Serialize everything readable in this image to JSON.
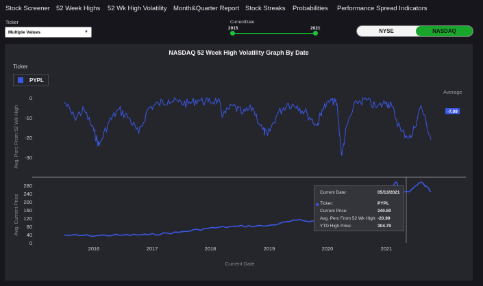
{
  "nav": [
    {
      "label": "Stock Screener"
    },
    {
      "label": "52 Week Highs"
    },
    {
      "label": "52 Wk High Volatility"
    },
    {
      "label": "Month&Quarter Report"
    },
    {
      "label": "Stock Streaks"
    },
    {
      "label": "Probabilities"
    },
    {
      "label": "Performance Spread Indicators"
    }
  ],
  "ticker_filter": {
    "label": "Ticker",
    "value": "Multiple Values"
  },
  "date_filter": {
    "label": "CurrentDate",
    "min": "2015",
    "max": "2021"
  },
  "exchange": {
    "options": [
      "NYSE",
      "NASDAQ"
    ],
    "selected": "NASDAQ"
  },
  "chart": {
    "title": "NASDAQ 52 Week High Volatility Graph By Date",
    "legend_title": "Ticker",
    "legend_item": "PYPL",
    "series_color": "#3b59e6",
    "avg_label": "Average",
    "avg_value": "-7.09",
    "top_ylabel": "Avg. Perc From 52 Wk High",
    "bottom_ylabel": "Avg. Current Price",
    "xlabel": "Current Date",
    "top_ticks": [
      "0",
      "-10",
      "-20",
      "-30"
    ],
    "bottom_ticks": [
      "280",
      "240",
      "200",
      "160",
      "120",
      "80",
      "40",
      "0"
    ],
    "x_ticks": [
      "2016",
      "2017",
      "2018",
      "2019",
      "2020",
      "2021"
    ]
  },
  "chart_data": {
    "type": "line",
    "panels": [
      {
        "ylabel": "Avg. Perc From 52 Wk High",
        "ylim": [
          -33,
          0
        ],
        "reference_line": {
          "label": "Average",
          "value": -7.09
        },
        "series": [
          {
            "name": "PYPL",
            "color": "#3b59e6",
            "x": [
              "2015-07",
              "2015-09",
              "2015-11",
              "2016-01",
              "2016-02",
              "2016-04",
              "2016-06",
              "2016-08",
              "2016-10",
              "2016-12",
              "2017-02",
              "2017-04",
              "2017-06",
              "2017-08",
              "2017-10",
              "2017-12",
              "2018-02",
              "2018-03",
              "2018-05",
              "2018-07",
              "2018-09",
              "2018-11",
              "2018-12",
              "2019-02",
              "2019-04",
              "2019-06",
              "2019-08",
              "2019-10",
              "2019-11",
              "2020-01",
              "2020-02",
              "2020-03",
              "2020-04",
              "2020-06",
              "2020-08",
              "2020-10",
              "2020-12",
              "2021-01",
              "2021-03",
              "2021-05",
              "2021-07",
              "2021-09"
            ],
            "values": [
              -2,
              -10,
              -6,
              -17,
              -24,
              -12,
              -6,
              -10,
              -18,
              -5,
              -3,
              -1,
              -2,
              -3,
              -1,
              -2,
              -1,
              -9,
              -4,
              -8,
              -5,
              -16,
              -19,
              -8,
              -3,
              -4,
              -8,
              -14,
              -6,
              -1,
              -3,
              -29,
              -14,
              -2,
              -1,
              -5,
              -2,
              -4,
              -17,
              -20,
              -4,
              -21
            ]
          }
        ]
      },
      {
        "ylabel": "Avg. Current Price",
        "ylim": [
          0,
          300
        ],
        "series": [
          {
            "name": "PYPL",
            "color": "#3b59e6",
            "x": [
              "2015-07",
              "2015-12",
              "2016-06",
              "2016-12",
              "2017-06",
              "2017-12",
              "2018-06",
              "2018-12",
              "2019-06",
              "2019-10",
              "2020-01",
              "2020-03",
              "2020-06",
              "2020-09",
              "2020-12",
              "2021-02",
              "2021-03",
              "2021-05",
              "2021-07",
              "2021-09"
            ],
            "values": [
              38,
              36,
              38,
              40,
              52,
              72,
              82,
              84,
              112,
              105,
              116,
              90,
              160,
              195,
              240,
              300,
              240,
              260,
              300,
              252
            ]
          }
        ]
      }
    ],
    "x_ticks": [
      "2016",
      "2017",
      "2018",
      "2019",
      "2020",
      "2021"
    ],
    "xlabel": "Current Date",
    "tooltip": {
      "current_date": "05/13/2021",
      "ticker": "PYPL",
      "current_price": 240.8,
      "avg_perc_from_52wk_high": -20.99,
      "ytd_high_price": 304.79
    }
  },
  "tooltip": {
    "date_label": "Current Date:",
    "date_value": "05/13/2021",
    "ticker_label": "Ticker:",
    "ticker_value": "PYPL",
    "price_label": "Current Price:",
    "price_value": "240.80",
    "perc_label": "Avg. Perc From 52 Wk High:",
    "perc_value": "-20.99",
    "ytd_label": "YTD High Price:",
    "ytd_value": "304.79"
  }
}
